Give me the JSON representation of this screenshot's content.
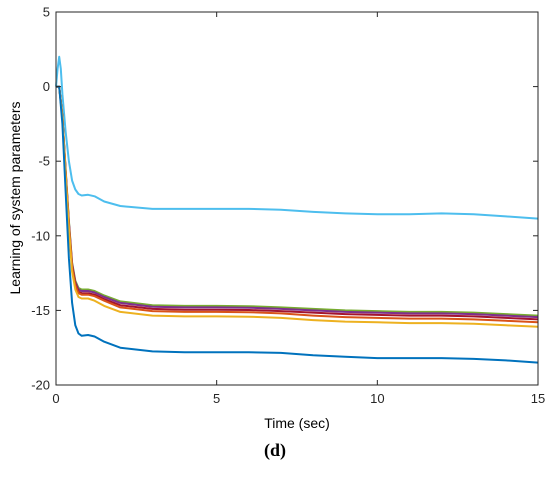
{
  "chart_data": {
    "type": "line",
    "title": "",
    "xlabel": "Time (sec)",
    "ylabel": "Learning of system parameters",
    "xlim": [
      0,
      15
    ],
    "ylim": [
      -20,
      5
    ],
    "xticks": [
      0,
      5,
      10,
      15
    ],
    "yticks": [
      5,
      0,
      -5,
      -10,
      -15,
      -20
    ],
    "grid": false,
    "legend": "none",
    "series": [
      {
        "color": "#4DBEEE",
        "points": [
          [
            0,
            0
          ],
          [
            0.05,
            1.2
          ],
          [
            0.1,
            2.0
          ],
          [
            0.15,
            1.2
          ],
          [
            0.2,
            -0.5
          ],
          [
            0.3,
            -3
          ],
          [
            0.4,
            -5
          ],
          [
            0.5,
            -6.3
          ],
          [
            0.6,
            -6.9
          ],
          [
            0.7,
            -7.2
          ],
          [
            0.8,
            -7.3
          ],
          [
            1.0,
            -7.25
          ],
          [
            1.2,
            -7.35
          ],
          [
            1.5,
            -7.7
          ],
          [
            2.0,
            -8.0
          ],
          [
            3,
            -8.2
          ],
          [
            4,
            -8.2
          ],
          [
            5,
            -8.2
          ],
          [
            6,
            -8.2
          ],
          [
            7,
            -8.25
          ],
          [
            8,
            -8.4
          ],
          [
            9,
            -8.5
          ],
          [
            10,
            -8.55
          ],
          [
            11,
            -8.55
          ],
          [
            12,
            -8.5
          ],
          [
            13,
            -8.55
          ],
          [
            14,
            -8.7
          ],
          [
            15,
            -8.85
          ]
        ]
      },
      {
        "color": "#77AC30",
        "points": [
          [
            0,
            0
          ],
          [
            0.1,
            0
          ],
          [
            0.2,
            -2
          ],
          [
            0.3,
            -5.5
          ],
          [
            0.4,
            -9
          ],
          [
            0.5,
            -11.8
          ],
          [
            0.6,
            -13
          ],
          [
            0.7,
            -13.5
          ],
          [
            0.8,
            -13.6
          ],
          [
            1.0,
            -13.6
          ],
          [
            1.2,
            -13.7
          ],
          [
            1.5,
            -14.0
          ],
          [
            2.0,
            -14.4
          ],
          [
            3,
            -14.65
          ],
          [
            4,
            -14.7
          ],
          [
            5,
            -14.7
          ],
          [
            6,
            -14.72
          ],
          [
            7,
            -14.8
          ],
          [
            8,
            -14.9
          ],
          [
            9,
            -15.0
          ],
          [
            10,
            -15.05
          ],
          [
            11,
            -15.1
          ],
          [
            12,
            -15.1
          ],
          [
            13,
            -15.15
          ],
          [
            14,
            -15.25
          ],
          [
            15,
            -15.35
          ]
        ]
      },
      {
        "color": "#7E2F8E",
        "points": [
          [
            0,
            0
          ],
          [
            0.1,
            0
          ],
          [
            0.2,
            -2
          ],
          [
            0.3,
            -5.6
          ],
          [
            0.4,
            -9.1
          ],
          [
            0.5,
            -11.9
          ],
          [
            0.6,
            -13.1
          ],
          [
            0.7,
            -13.6
          ],
          [
            0.8,
            -13.7
          ],
          [
            1.0,
            -13.7
          ],
          [
            1.2,
            -13.8
          ],
          [
            1.5,
            -14.1
          ],
          [
            2.0,
            -14.5
          ],
          [
            3,
            -14.75
          ],
          [
            4,
            -14.8
          ],
          [
            5,
            -14.8
          ],
          [
            6,
            -14.82
          ],
          [
            7,
            -14.9
          ],
          [
            8,
            -15.0
          ],
          [
            9,
            -15.1
          ],
          [
            10,
            -15.15
          ],
          [
            11,
            -15.2
          ],
          [
            12,
            -15.2
          ],
          [
            13,
            -15.25
          ],
          [
            14,
            -15.35
          ],
          [
            15,
            -15.45
          ]
        ]
      },
      {
        "color": "#A2142F",
        "points": [
          [
            0,
            0
          ],
          [
            0.1,
            0
          ],
          [
            0.2,
            -2
          ],
          [
            0.3,
            -5.7
          ],
          [
            0.4,
            -9.2
          ],
          [
            0.5,
            -12.0
          ],
          [
            0.6,
            -13.2
          ],
          [
            0.7,
            -13.75
          ],
          [
            0.8,
            -13.85
          ],
          [
            1.0,
            -13.85
          ],
          [
            1.2,
            -13.95
          ],
          [
            1.5,
            -14.25
          ],
          [
            2.0,
            -14.65
          ],
          [
            3,
            -14.9
          ],
          [
            4,
            -14.95
          ],
          [
            5,
            -14.95
          ],
          [
            6,
            -14.97
          ],
          [
            7,
            -15.05
          ],
          [
            8,
            -15.15
          ],
          [
            9,
            -15.25
          ],
          [
            10,
            -15.3
          ],
          [
            11,
            -15.35
          ],
          [
            12,
            -15.35
          ],
          [
            13,
            -15.4
          ],
          [
            14,
            -15.5
          ],
          [
            15,
            -15.6
          ]
        ]
      },
      {
        "color": "#D95319",
        "points": [
          [
            0,
            0
          ],
          [
            0.1,
            0
          ],
          [
            0.2,
            -2
          ],
          [
            0.3,
            -5.7
          ],
          [
            0.4,
            -9.3
          ],
          [
            0.5,
            -12.1
          ],
          [
            0.6,
            -13.3
          ],
          [
            0.7,
            -13.85
          ],
          [
            0.8,
            -13.95
          ],
          [
            1.0,
            -13.95
          ],
          [
            1.2,
            -14.05
          ],
          [
            1.5,
            -14.35
          ],
          [
            2.0,
            -14.8
          ],
          [
            3,
            -15.05
          ],
          [
            4,
            -15.1
          ],
          [
            5,
            -15.1
          ],
          [
            6,
            -15.12
          ],
          [
            7,
            -15.2
          ],
          [
            8,
            -15.35
          ],
          [
            9,
            -15.45
          ],
          [
            10,
            -15.5
          ],
          [
            11,
            -15.55
          ],
          [
            12,
            -15.55
          ],
          [
            13,
            -15.6
          ],
          [
            14,
            -15.7
          ],
          [
            15,
            -15.8
          ]
        ]
      },
      {
        "color": "#EDB120",
        "points": [
          [
            0,
            0
          ],
          [
            0.1,
            0
          ],
          [
            0.2,
            -2.1
          ],
          [
            0.3,
            -5.9
          ],
          [
            0.4,
            -9.5
          ],
          [
            0.5,
            -12.4
          ],
          [
            0.6,
            -13.6
          ],
          [
            0.7,
            -14.1
          ],
          [
            0.8,
            -14.2
          ],
          [
            1.0,
            -14.2
          ],
          [
            1.2,
            -14.35
          ],
          [
            1.5,
            -14.7
          ],
          [
            2.0,
            -15.1
          ],
          [
            3,
            -15.35
          ],
          [
            4,
            -15.4
          ],
          [
            5,
            -15.4
          ],
          [
            6,
            -15.42
          ],
          [
            7,
            -15.5
          ],
          [
            8,
            -15.65
          ],
          [
            9,
            -15.75
          ],
          [
            10,
            -15.8
          ],
          [
            11,
            -15.85
          ],
          [
            12,
            -15.85
          ],
          [
            13,
            -15.9
          ],
          [
            14,
            -16.0
          ],
          [
            15,
            -16.1
          ]
        ]
      },
      {
        "color": "#0072BD",
        "points": [
          [
            0,
            0
          ],
          [
            0.1,
            0
          ],
          [
            0.2,
            -2.5
          ],
          [
            0.3,
            -7
          ],
          [
            0.4,
            -11.5
          ],
          [
            0.5,
            -14.5
          ],
          [
            0.6,
            -16.0
          ],
          [
            0.7,
            -16.55
          ],
          [
            0.8,
            -16.7
          ],
          [
            1.0,
            -16.65
          ],
          [
            1.2,
            -16.75
          ],
          [
            1.5,
            -17.1
          ],
          [
            2.0,
            -17.5
          ],
          [
            3,
            -17.75
          ],
          [
            4,
            -17.8
          ],
          [
            5,
            -17.8
          ],
          [
            6,
            -17.8
          ],
          [
            7,
            -17.85
          ],
          [
            8,
            -18.0
          ],
          [
            9,
            -18.1
          ],
          [
            10,
            -18.2
          ],
          [
            11,
            -18.2
          ],
          [
            12,
            -18.2
          ],
          [
            13,
            -18.25
          ],
          [
            14,
            -18.35
          ],
          [
            15,
            -18.5
          ]
        ]
      }
    ]
  },
  "caption": "(d)"
}
